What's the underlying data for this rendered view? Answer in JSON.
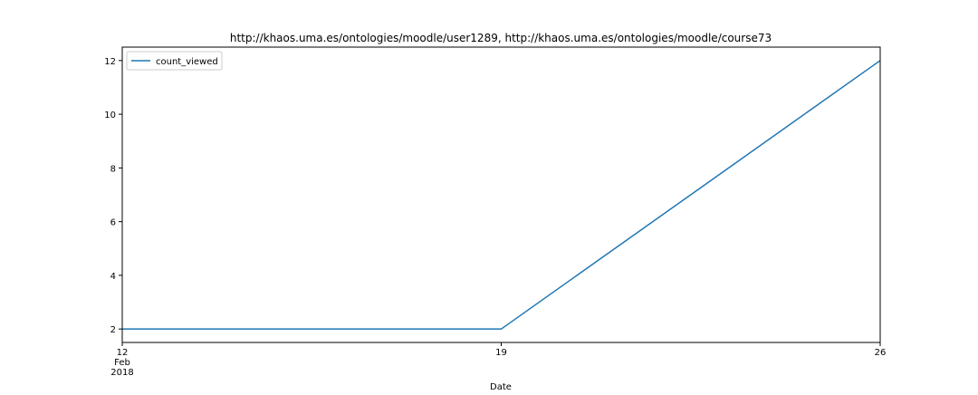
{
  "chart_data": {
    "type": "line",
    "title": "http://khaos.uma.es/ontologies/moodle/user1289, http://khaos.uma.es/ontologies/moodle/course73",
    "xlabel": "Date",
    "ylabel": "",
    "x": [
      "2018-02-12",
      "2018-02-19",
      "2018-02-26"
    ],
    "x_ticks": [
      {
        "date": "2018-02-12",
        "lines": [
          "12",
          "Feb",
          "2018"
        ]
      },
      {
        "date": "2018-02-19",
        "lines": [
          "19"
        ]
      },
      {
        "date": "2018-02-26",
        "lines": [
          "26"
        ]
      }
    ],
    "xlim": [
      "2018-02-12",
      "2018-02-26"
    ],
    "ylim": [
      1.5,
      12.5
    ],
    "y_ticks": [
      2,
      4,
      6,
      8,
      10,
      12
    ],
    "series": [
      {
        "name": "count_viewed",
        "values": [
          2,
          2,
          12
        ],
        "color": "#1f77b4"
      }
    ],
    "legend": {
      "position": "top-left"
    },
    "grid": false
  }
}
